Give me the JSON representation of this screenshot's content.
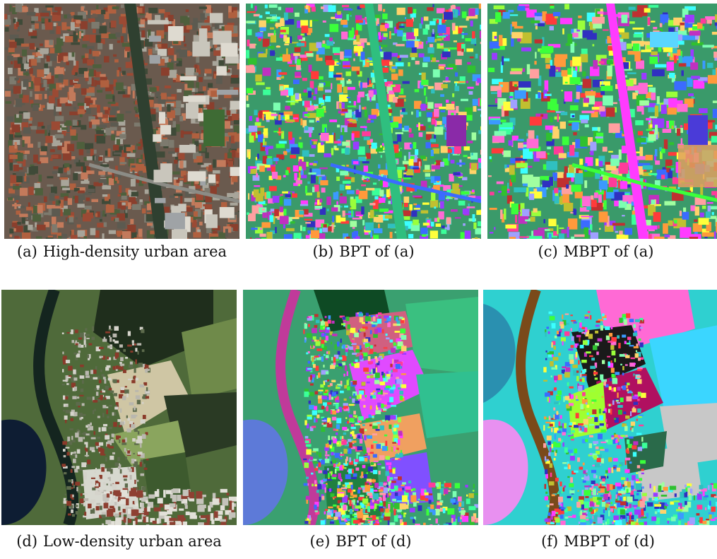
{
  "figure": {
    "panels": [
      {
        "id": "a",
        "label": "(a)",
        "caption": "High-density urban area",
        "kind": "photo",
        "scene": "urban-high"
      },
      {
        "id": "b",
        "label": "(b)",
        "caption": "BPT of (a)",
        "kind": "segmentation",
        "scene": "urban-high"
      },
      {
        "id": "c",
        "label": "(c)",
        "caption": "MBPT of (a)",
        "kind": "segmentation",
        "scene": "urban-high"
      },
      {
        "id": "d",
        "label": "(d)",
        "caption": "Low-density urban area",
        "kind": "photo",
        "scene": "urban-low"
      },
      {
        "id": "e",
        "label": "(e)",
        "caption": "BPT of (d)",
        "kind": "segmentation",
        "scene": "urban-low"
      },
      {
        "id": "f",
        "label": "(f)",
        "caption": "MBPT of (d)",
        "kind": "segmentation",
        "scene": "urban-low"
      }
    ]
  }
}
